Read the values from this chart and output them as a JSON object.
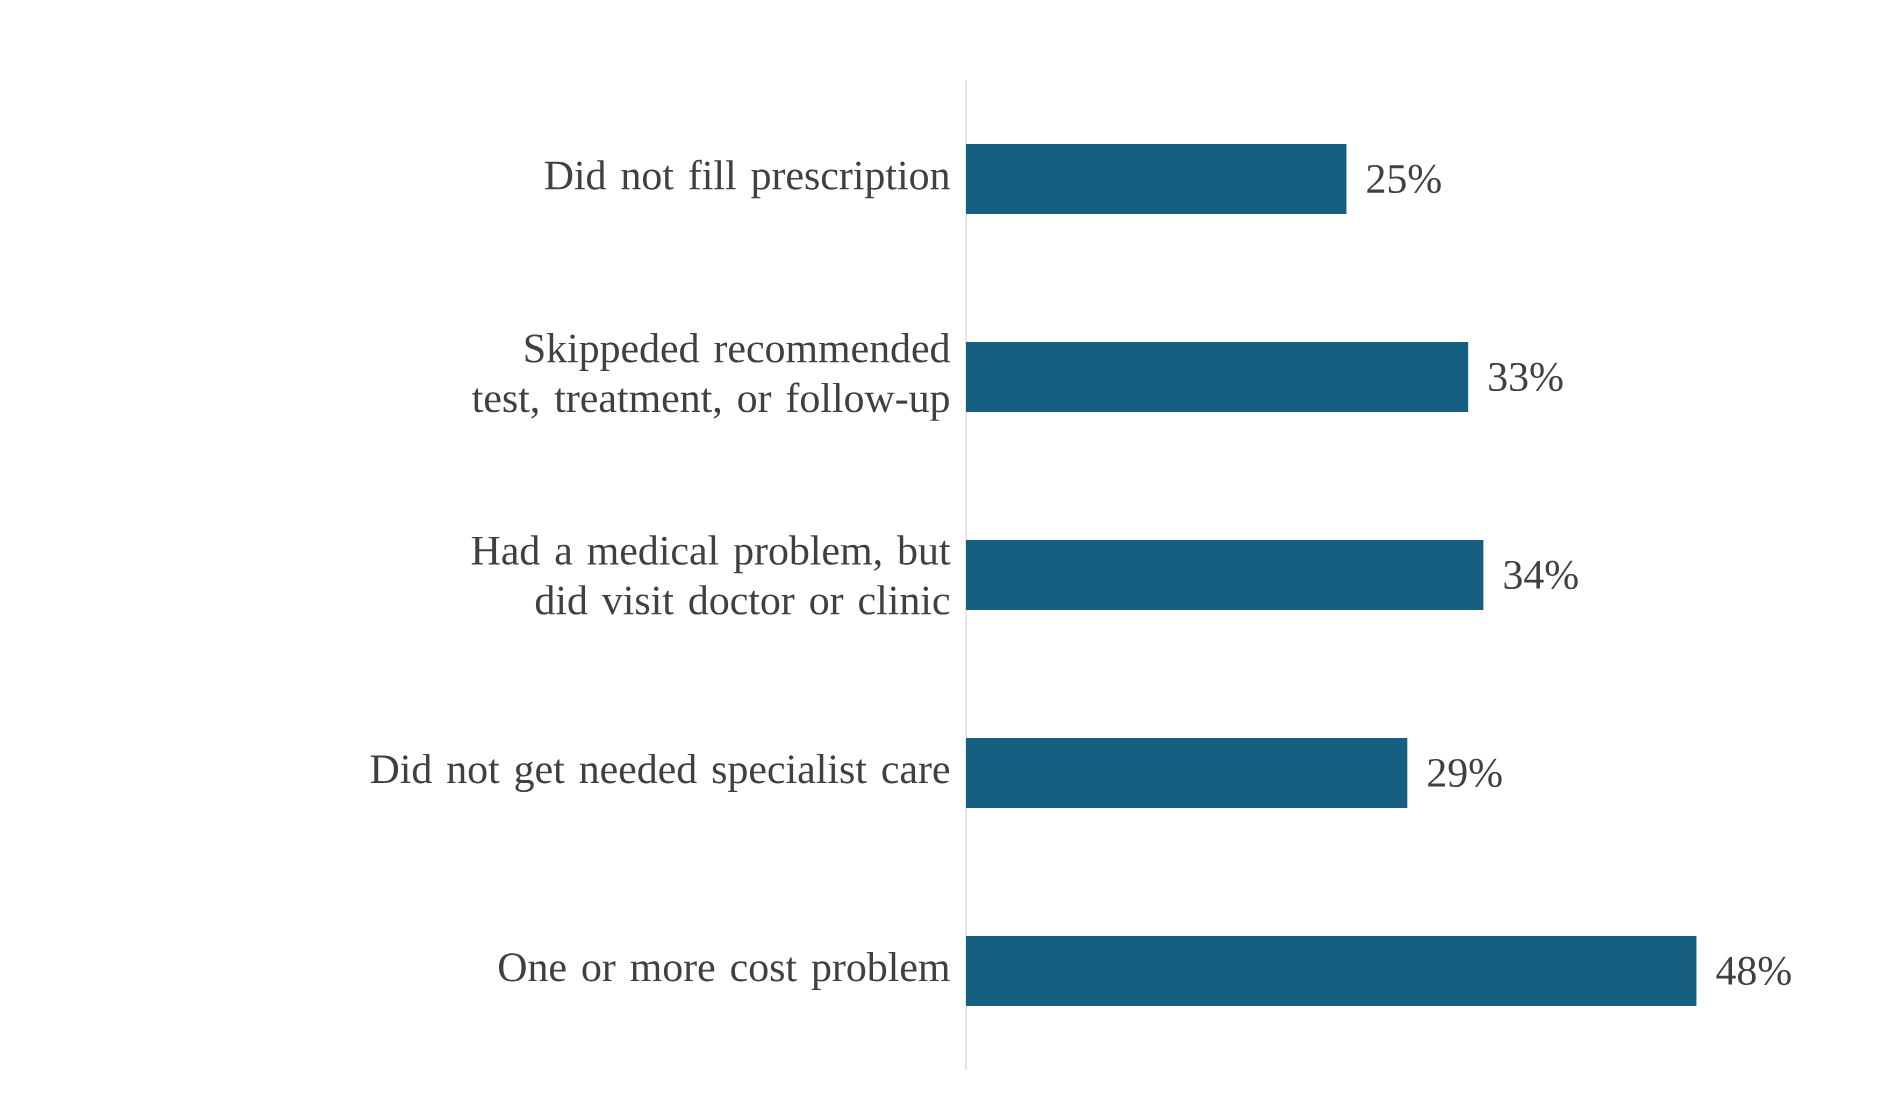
{
  "chart_data": {
    "type": "bar",
    "orientation": "horizontal",
    "categories": [
      "Did not fill prescription",
      "Skippeded recommended test, treatment, or follow-up",
      "Had a medical problem, but did visit doctor or clinic",
      "Did not get needed specialist care",
      "One or more cost problem"
    ],
    "values": [
      25,
      33,
      34,
      29,
      48
    ],
    "value_labels": [
      "25%",
      "33%",
      "34%",
      "29%",
      "48%"
    ],
    "color": "#175f80"
  }
}
